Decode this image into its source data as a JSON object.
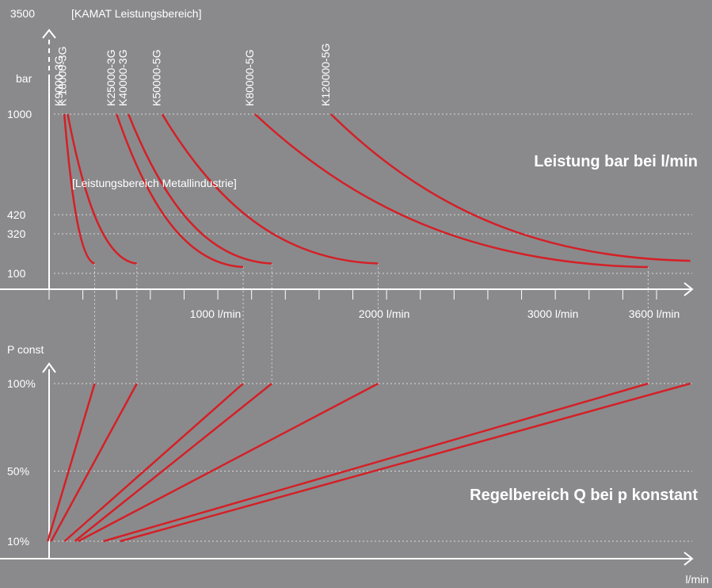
{
  "colors": {
    "background": "#8a8a8c",
    "curve": "#d42027",
    "axis": "#ffffff",
    "grid": "#d8d8d8"
  },
  "chart_data": [
    {
      "type": "line",
      "title": "Leistung bar bei l/min",
      "xlabel": "",
      "ylabel": "bar",
      "top_label": "3500",
      "range_note_top": "[KAMAT Leistungsbereich]",
      "range_note_mid": "[Leistungsbereich Metallindustrie]",
      "xlim": [
        0,
        3600
      ],
      "ylim": [
        100,
        1000
      ],
      "y_ticks": [
        {
          "label": "1000",
          "value": 1000
        },
        {
          "label": "420",
          "value": 420
        },
        {
          "label": "320",
          "value": 320
        },
        {
          "label": "100",
          "value": 100
        }
      ],
      "x_tick_labels": [
        {
          "label": "1000 l/min",
          "value": 1000
        },
        {
          "label": "2000 l/min",
          "value": 2000
        },
        {
          "label": "3000 l/min",
          "value": 3000
        },
        {
          "label": "3600 l/min",
          "value": 3600
        }
      ],
      "grid": "dotted",
      "series": [
        {
          "name": "K9000-3G",
          "points": [
            [
              90,
              1000
            ],
            [
              270,
              155
            ]
          ]
        },
        {
          "name": "K 18000-3G",
          "points": [
            [
              110,
              1000
            ],
            [
              520,
              155
            ]
          ]
        },
        {
          "name": "K25000-3G",
          "points": [
            [
              400,
              1000
            ],
            [
              1150,
              135
            ]
          ]
        },
        {
          "name": "K40000-3G",
          "points": [
            [
              470,
              1000
            ],
            [
              1320,
              155
            ]
          ]
        },
        {
          "name": "K50000-5G",
          "points": [
            [
              670,
              1000
            ],
            [
              1950,
              155
            ]
          ]
        },
        {
          "name": "K80000-5G",
          "points": [
            [
              1220,
              1000
            ],
            [
              3550,
              135
            ]
          ]
        },
        {
          "name": "K120000-5G",
          "points": [
            [
              1670,
              1000
            ],
            [
              3800,
              170
            ]
          ]
        }
      ]
    },
    {
      "type": "line",
      "title": "Regelbereich Q bei p konstant",
      "xlabel": "l/min",
      "ylabel": "P const",
      "y_ticks": [
        {
          "label": "100%",
          "value": 100
        },
        {
          "label": "50%",
          "value": 50
        },
        {
          "label": "10%",
          "value": 10
        }
      ],
      "ylim": [
        10,
        100
      ],
      "grid": "dotted",
      "series": [
        {
          "name": "K9000-3G",
          "points": [
            [
              20,
              10
            ],
            [
              270,
              100
            ]
          ]
        },
        {
          "name": "K 18000-3G",
          "points": [
            [
              40,
              10
            ],
            [
              520,
              100
            ]
          ]
        },
        {
          "name": "K25000-3G",
          "points": [
            [
              120,
              10
            ],
            [
              1150,
              100
            ]
          ]
        },
        {
          "name": "K40000-3G",
          "points": [
            [
              180,
              10
            ],
            [
              1320,
              100
            ]
          ]
        },
        {
          "name": "K50000-5G",
          "points": [
            [
              200,
              10
            ],
            [
              1950,
              100
            ]
          ]
        },
        {
          "name": "K80000-5G",
          "points": [
            [
              350,
              10
            ],
            [
              3550,
              100
            ]
          ]
        },
        {
          "name": "K120000-5G",
          "points": [
            [
              450,
              10
            ],
            [
              3800,
              100
            ]
          ]
        }
      ]
    }
  ]
}
